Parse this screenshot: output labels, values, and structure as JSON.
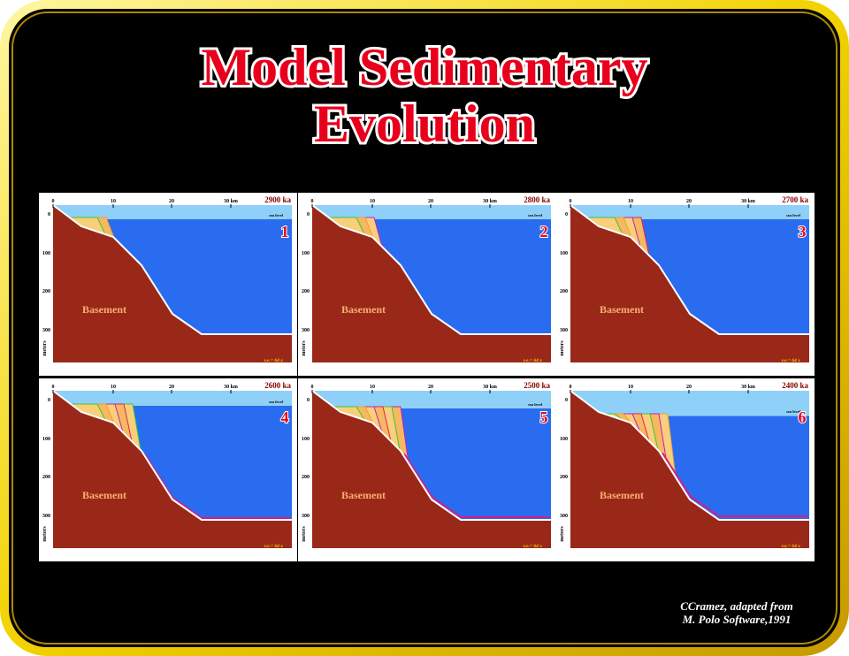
{
  "title": [
    "Model Sedimentary",
    "Evolution"
  ],
  "panels": [
    {
      "age": "2900 ka",
      "number": "1"
    },
    {
      "age": "2800 ka",
      "number": "2"
    },
    {
      "age": "2700 ka",
      "number": "3"
    },
    {
      "age": "2600 ka",
      "number": "4"
    },
    {
      "age": "2500 ka",
      "number": "5"
    },
    {
      "age": "2400 ka",
      "number": "6"
    }
  ],
  "axis": {
    "x_ticks": [
      "0",
      "10",
      "20",
      "30 km"
    ],
    "y_ticks": [
      "0",
      "100",
      "200",
      "300"
    ],
    "y_label": "meters",
    "sea_level": "sea level",
    "basement": "Basement",
    "scale": "v.e.= 64 x"
  },
  "credit": [
    "CCramez, adapted  from",
    "M. Polo Software,1991"
  ]
}
